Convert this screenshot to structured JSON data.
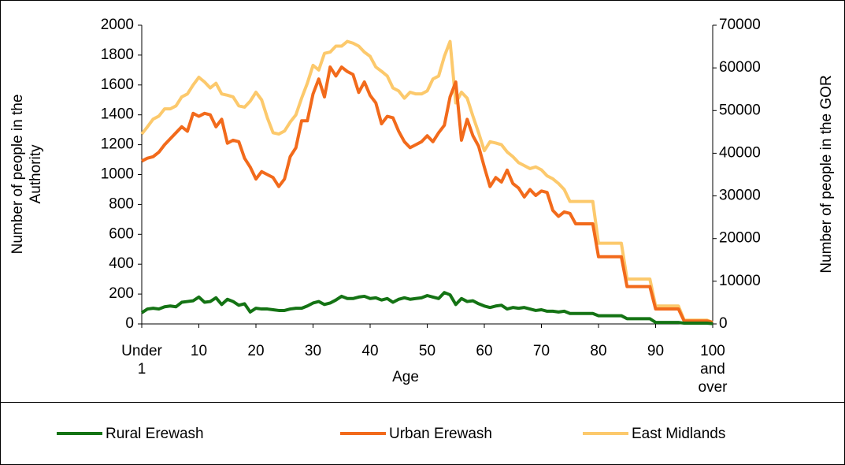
{
  "chart_data": {
    "type": "line",
    "x_label": "Age",
    "y_label": "Number of people in the Authority",
    "y2_label": "Number of people in the GOR",
    "categories": [
      "Under 1",
      null,
      null,
      null,
      null,
      null,
      null,
      null,
      null,
      null,
      "10",
      null,
      null,
      null,
      null,
      null,
      null,
      null,
      null,
      null,
      "20",
      null,
      null,
      null,
      null,
      null,
      null,
      null,
      null,
      null,
      "30",
      null,
      null,
      null,
      null,
      null,
      null,
      null,
      null,
      null,
      "40",
      null,
      null,
      null,
      null,
      null,
      null,
      null,
      null,
      null,
      "50",
      null,
      null,
      null,
      null,
      null,
      null,
      null,
      null,
      null,
      "60",
      null,
      null,
      null,
      null,
      null,
      null,
      null,
      null,
      null,
      "70",
      null,
      null,
      null,
      null,
      null,
      null,
      null,
      null,
      null,
      "80",
      null,
      null,
      null,
      null,
      null,
      null,
      null,
      null,
      null,
      "90",
      null,
      null,
      null,
      null,
      null,
      null,
      null,
      null,
      null,
      "100 and over"
    ],
    "ylim": [
      0,
      2000
    ],
    "yticks": [
      0,
      200,
      400,
      600,
      800,
      1000,
      1200,
      1400,
      1600,
      1800,
      2000
    ],
    "y2lim": [
      0,
      70000
    ],
    "y2ticks": [
      0,
      10000,
      20000,
      30000,
      40000,
      50000,
      60000,
      70000
    ],
    "grid": false,
    "legend": "bottom",
    "series": [
      {
        "name": "Rural Erewash",
        "color": "#147314",
        "values": [
          75,
          100,
          105,
          100,
          115,
          120,
          115,
          145,
          150,
          155,
          180,
          145,
          150,
          175,
          130,
          165,
          150,
          125,
          135,
          80,
          105,
          100,
          100,
          95,
          90,
          90,
          100,
          105,
          105,
          120,
          140,
          150,
          130,
          140,
          160,
          185,
          170,
          170,
          180,
          185,
          170,
          175,
          160,
          170,
          145,
          165,
          175,
          165,
          170,
          175,
          190,
          180,
          170,
          210,
          195,
          130,
          170,
          150,
          155,
          135,
          120,
          110,
          120,
          125,
          100,
          110,
          105,
          110,
          100,
          90,
          95,
          85,
          85,
          80,
          85,
          70,
          70,
          70,
          70,
          70,
          55,
          55,
          55,
          55,
          55,
          35,
          35,
          35,
          35,
          35,
          10,
          10,
          10,
          10,
          10,
          5,
          5,
          5,
          5,
          5,
          2
        ]
      },
      {
        "name": "Urban Erewash",
        "color": "#f26a1b",
        "values": [
          1090,
          1110,
          1120,
          1150,
          1200,
          1240,
          1280,
          1320,
          1290,
          1410,
          1390,
          1410,
          1400,
          1320,
          1370,
          1210,
          1230,
          1220,
          1110,
          1050,
          970,
          1020,
          1000,
          980,
          920,
          970,
          1120,
          1180,
          1360,
          1360,
          1540,
          1640,
          1520,
          1720,
          1660,
          1720,
          1690,
          1670,
          1550,
          1620,
          1530,
          1480,
          1340,
          1390,
          1380,
          1290,
          1220,
          1180,
          1200,
          1220,
          1260,
          1220,
          1280,
          1330,
          1520,
          1620,
          1230,
          1370,
          1260,
          1190,
          1050,
          920,
          980,
          950,
          1030,
          940,
          910,
          850,
          900,
          860,
          890,
          880,
          760,
          720,
          750,
          740,
          670,
          670,
          670,
          670,
          450,
          450,
          450,
          450,
          450,
          250,
          250,
          250,
          250,
          250,
          100,
          100,
          100,
          100,
          100,
          20,
          20,
          20,
          20,
          20,
          10
        ]
      },
      {
        "name": "East Midlands",
        "color": "#fcc96c",
        "axis": "y2",
        "values": [
          44500,
          46200,
          48000,
          48700,
          50400,
          50400,
          51100,
          53200,
          53900,
          56000,
          57800,
          56700,
          55300,
          56400,
          53900,
          53600,
          53200,
          51100,
          50800,
          52200,
          54300,
          52500,
          48300,
          44800,
          44500,
          45200,
          47300,
          49000,
          52900,
          56400,
          60600,
          59500,
          63400,
          63700,
          65100,
          65100,
          66200,
          65800,
          65100,
          63700,
          62700,
          60200,
          59200,
          58100,
          55300,
          54600,
          52900,
          54300,
          53900,
          53900,
          54600,
          57400,
          58100,
          62700,
          66200,
          51800,
          54300,
          52900,
          48700,
          44800,
          40600,
          42700,
          42400,
          42000,
          40300,
          39200,
          37800,
          37100,
          36400,
          36800,
          36100,
          34700,
          34000,
          32900,
          31500,
          28700,
          28700,
          28700,
          28700,
          28700,
          18900,
          18900,
          18900,
          18900,
          18900,
          10500,
          10500,
          10500,
          10500,
          10500,
          4200,
          4200,
          4200,
          4200,
          4200,
          875,
          875,
          875,
          875,
          875,
          350
        ]
      }
    ]
  }
}
